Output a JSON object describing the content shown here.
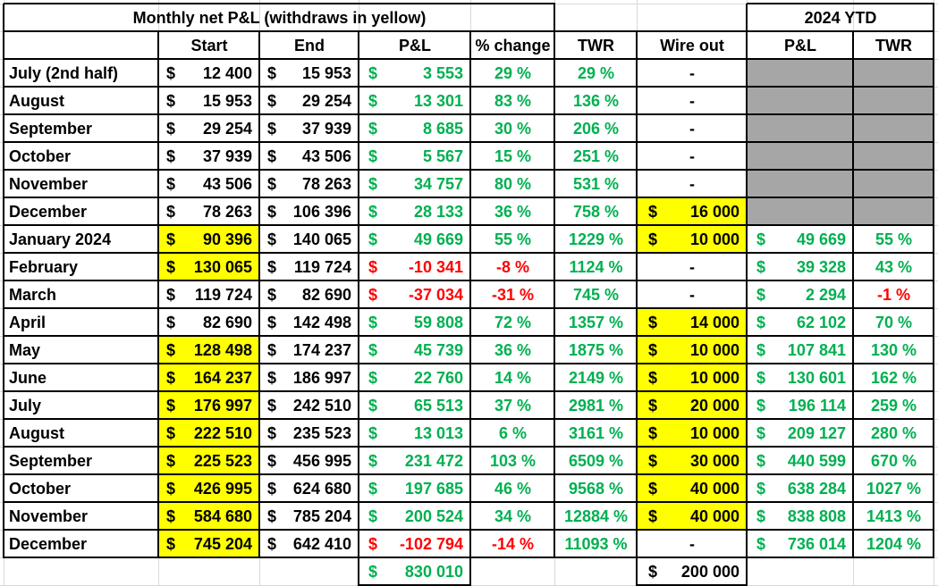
{
  "title": "Monthly net P&L (withdraws in yellow)",
  "ytd_title": "2024 YTD",
  "currency": "$",
  "headers": {
    "start": "Start",
    "end": "End",
    "pl": "P&L",
    "pct": "% change",
    "twr": "TWR",
    "wire": "Wire out",
    "ytd_pl": "P&L",
    "ytd_twr": "TWR"
  },
  "colors": {
    "positive": "#00b050",
    "negative": "#ff0000",
    "withdraw_highlight": "#ffff00",
    "ytd_na": "#a6a6a6"
  },
  "rows": [
    {
      "month": "July (2nd half)",
      "start": "12 400",
      "start_yellow": false,
      "end": "15 953",
      "pl": "3 553",
      "pl_neg": false,
      "pct": "29 %",
      "pct_neg": false,
      "twr": "29 %",
      "wire": "-",
      "ytd_pl": "",
      "ytd_twr": "",
      "ytd_neg": false,
      "ytd_na": true
    },
    {
      "month": "August",
      "start": "15 953",
      "start_yellow": false,
      "end": "29 254",
      "pl": "13 301",
      "pl_neg": false,
      "pct": "83 %",
      "pct_neg": false,
      "twr": "136 %",
      "wire": "-",
      "ytd_pl": "",
      "ytd_twr": "",
      "ytd_neg": false,
      "ytd_na": true
    },
    {
      "month": "September",
      "start": "29 254",
      "start_yellow": false,
      "end": "37 939",
      "pl": "8 685",
      "pl_neg": false,
      "pct": "30 %",
      "pct_neg": false,
      "twr": "206 %",
      "wire": "-",
      "ytd_pl": "",
      "ytd_twr": "",
      "ytd_neg": false,
      "ytd_na": true
    },
    {
      "month": "October",
      "start": "37 939",
      "start_yellow": false,
      "end": "43 506",
      "pl": "5 567",
      "pl_neg": false,
      "pct": "15 %",
      "pct_neg": false,
      "twr": "251 %",
      "wire": "-",
      "ytd_pl": "",
      "ytd_twr": "",
      "ytd_neg": false,
      "ytd_na": true
    },
    {
      "month": "November",
      "start": "43 506",
      "start_yellow": false,
      "end": "78 263",
      "pl": "34 757",
      "pl_neg": false,
      "pct": "80 %",
      "pct_neg": false,
      "twr": "531 %",
      "wire": "-",
      "ytd_pl": "",
      "ytd_twr": "",
      "ytd_neg": false,
      "ytd_na": true
    },
    {
      "month": "December",
      "start": "78 263",
      "start_yellow": false,
      "end": "106 396",
      "pl": "28 133",
      "pl_neg": false,
      "pct": "36 %",
      "pct_neg": false,
      "twr": "758 %",
      "wire": "16 000",
      "ytd_pl": "",
      "ytd_twr": "",
      "ytd_neg": false,
      "ytd_na": true
    },
    {
      "month": "January 2024",
      "start": "90 396",
      "start_yellow": true,
      "end": "140 065",
      "pl": "49 669",
      "pl_neg": false,
      "pct": "55 %",
      "pct_neg": false,
      "twr": "1229 %",
      "wire": "10 000",
      "ytd_pl": "49 669",
      "ytd_twr": "55 %",
      "ytd_neg": false,
      "ytd_na": false
    },
    {
      "month": "February",
      "start": "130 065",
      "start_yellow": true,
      "end": "119 724",
      "pl": "-10 341",
      "pl_neg": true,
      "pct": "-8 %",
      "pct_neg": true,
      "twr": "1124 %",
      "wire": "-",
      "ytd_pl": "39 328",
      "ytd_twr": "43 %",
      "ytd_neg": false,
      "ytd_na": false
    },
    {
      "month": "March",
      "start": "119 724",
      "start_yellow": false,
      "end": "82 690",
      "pl": "-37 034",
      "pl_neg": true,
      "pct": "-31 %",
      "pct_neg": true,
      "twr": "745 %",
      "wire": "-",
      "ytd_pl": "2 294",
      "ytd_twr": "-1 %",
      "ytd_neg": true,
      "ytd_na": false
    },
    {
      "month": "April",
      "start": "82 690",
      "start_yellow": false,
      "end": "142 498",
      "pl": "59 808",
      "pl_neg": false,
      "pct": "72 %",
      "pct_neg": false,
      "twr": "1357 %",
      "wire": "14 000",
      "ytd_pl": "62 102",
      "ytd_twr": "70 %",
      "ytd_neg": false,
      "ytd_na": false
    },
    {
      "month": "May",
      "start": "128 498",
      "start_yellow": true,
      "end": "174 237",
      "pl": "45 739",
      "pl_neg": false,
      "pct": "36 %",
      "pct_neg": false,
      "twr": "1875 %",
      "wire": "10 000",
      "ytd_pl": "107 841",
      "ytd_twr": "130 %",
      "ytd_neg": false,
      "ytd_na": false
    },
    {
      "month": "June",
      "start": "164 237",
      "start_yellow": true,
      "end": "186 997",
      "pl": "22 760",
      "pl_neg": false,
      "pct": "14 %",
      "pct_neg": false,
      "twr": "2149 %",
      "wire": "10 000",
      "ytd_pl": "130 601",
      "ytd_twr": "162 %",
      "ytd_neg": false,
      "ytd_na": false
    },
    {
      "month": "July",
      "start": "176 997",
      "start_yellow": true,
      "end": "242 510",
      "pl": "65 513",
      "pl_neg": false,
      "pct": "37 %",
      "pct_neg": false,
      "twr": "2981 %",
      "wire": "20 000",
      "ytd_pl": "196 114",
      "ytd_twr": "259 %",
      "ytd_neg": false,
      "ytd_na": false
    },
    {
      "month": "August",
      "start": "222 510",
      "start_yellow": true,
      "end": "235 523",
      "pl": "13 013",
      "pl_neg": false,
      "pct": "6 %",
      "pct_neg": false,
      "twr": "3161 %",
      "wire": "10 000",
      "ytd_pl": "209 127",
      "ytd_twr": "280 %",
      "ytd_neg": false,
      "ytd_na": false
    },
    {
      "month": "September",
      "start": "225 523",
      "start_yellow": true,
      "end": "456 995",
      "pl": "231 472",
      "pl_neg": false,
      "pct": "103 %",
      "pct_neg": false,
      "twr": "6509 %",
      "wire": "30 000",
      "ytd_pl": "440 599",
      "ytd_twr": "670 %",
      "ytd_neg": false,
      "ytd_na": false
    },
    {
      "month": "October",
      "start": "426 995",
      "start_yellow": true,
      "end": "624 680",
      "pl": "197 685",
      "pl_neg": false,
      "pct": "46 %",
      "pct_neg": false,
      "twr": "9568 %",
      "wire": "40 000",
      "ytd_pl": "638 284",
      "ytd_twr": "1027 %",
      "ytd_neg": false,
      "ytd_na": false
    },
    {
      "month": "November",
      "start": "584 680",
      "start_yellow": true,
      "end": "785 204",
      "pl": "200 524",
      "pl_neg": false,
      "pct": "34 %",
      "pct_neg": false,
      "twr": "12884 %",
      "wire": "40 000",
      "ytd_pl": "838 808",
      "ytd_twr": "1413 %",
      "ytd_neg": false,
      "ytd_na": false
    },
    {
      "month": "December",
      "start": "745 204",
      "start_yellow": true,
      "end": "642 410",
      "pl": "-102 794",
      "pl_neg": true,
      "pct": "-14 %",
      "pct_neg": true,
      "twr": "11093 %",
      "wire": "-",
      "ytd_pl": "736 014",
      "ytd_twr": "1204 %",
      "ytd_neg": false,
      "ytd_na": false
    }
  ],
  "totals": {
    "pl": "830 010",
    "wire": "200 000"
  }
}
